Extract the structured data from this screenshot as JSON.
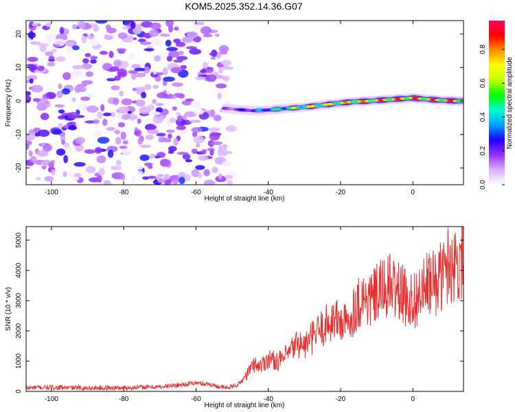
{
  "title": "KOM5.2025.352.14.36.G07",
  "chart_data": [
    {
      "type": "heatmap",
      "xlabel": "Height of straight line (km)",
      "ylabel": "Frequency (Hz)",
      "xlim": [
        -107,
        14
      ],
      "ylim": [
        -25,
        24
      ],
      "xticks": [
        "-100",
        "-80",
        "-60",
        "-40",
        "-20",
        "0"
      ],
      "xtick_values": [
        -100,
        -80,
        -60,
        -40,
        -20,
        0
      ],
      "yticks": [
        "-20",
        "-10",
        "0",
        "10",
        "20"
      ],
      "ytick_values": [
        -20,
        -10,
        0,
        10,
        20
      ],
      "colorbar": {
        "label": "Normalized spectral amplitude",
        "ticks": [
          "0.0",
          "0.2",
          "0.4",
          "0.6",
          "0.8"
        ],
        "tick_values": [
          0.0,
          0.2,
          0.4,
          0.6,
          0.8
        ],
        "range": [
          0,
          0.97
        ],
        "colormap": [
          "#ffffff",
          "#d8b0ff",
          "#9a30ff",
          "#2000ff",
          "#00a0ff",
          "#00ffd0",
          "#00ff00",
          "#c0ff00",
          "#ffff00",
          "#ff9000",
          "#ff0000",
          "#ff0060"
        ]
      },
      "noise_region": {
        "x": [
          -107,
          -50
        ],
        "y": [
          -25,
          24
        ],
        "amplitude_max": 0.25
      },
      "signal_track": {
        "x": [
          -52,
          -48,
          -44,
          -40,
          -36,
          -32,
          -28,
          -24,
          -20,
          -16,
          -12,
          -8,
          -4,
          0,
          4,
          8,
          12,
          14
        ],
        "frequency": [
          -2.2,
          -2.6,
          -2.9,
          -2.7,
          -2.3,
          -2.0,
          -1.6,
          -1.1,
          -0.6,
          -0.2,
          0.0,
          0.3,
          0.6,
          0.9,
          0.5,
          0.2,
          0.0,
          0.0
        ],
        "amplitude": [
          0.2,
          0.25,
          0.35,
          0.45,
          0.55,
          0.65,
          0.75,
          0.75,
          0.8,
          0.85,
          0.85,
          0.9,
          0.9,
          0.95,
          0.9,
          0.9,
          0.95,
          0.95
        ]
      }
    },
    {
      "type": "line",
      "xlabel": "Height of straight line (km)",
      "ylabel": "SNR (10 * v/v)",
      "xlim": [
        -107,
        14
      ],
      "ylim": [
        0,
        5450
      ],
      "xticks": [
        "-100",
        "-80",
        "-60",
        "-40",
        "-20",
        "0"
      ],
      "xtick_values": [
        -100,
        -80,
        -60,
        -40,
        -20,
        0
      ],
      "yticks": [
        "0",
        "1000",
        "2000",
        "3000",
        "4000",
        "5000"
      ],
      "ytick_values": [
        0,
        1000,
        2000,
        3000,
        4000,
        5000
      ],
      "series": [
        {
          "color": "#e83030",
          "x": [
            -107,
            -100,
            -90,
            -80,
            -70,
            -64,
            -60,
            -56,
            -54,
            -52,
            -50,
            -48,
            -46,
            -44,
            -42,
            -40,
            -38,
            -36,
            -34,
            -32,
            -30,
            -28,
            -26,
            -24,
            -22,
            -20,
            -18,
            -16,
            -14,
            -12,
            -10,
            -8,
            -6,
            -4,
            -2,
            0,
            2,
            4,
            6,
            8,
            10,
            12,
            14
          ],
          "y": [
            120,
            130,
            110,
            120,
            150,
            220,
            280,
            230,
            170,
            120,
            150,
            250,
            550,
            900,
            850,
            1100,
            1000,
            1050,
            1300,
            1600,
            1500,
            1750,
            2000,
            2200,
            2400,
            2300,
            2200,
            2800,
            3100,
            3000,
            3200,
            3400,
            3500,
            3300,
            3100,
            3000,
            3200,
            3500,
            3600,
            3800,
            4300,
            4200,
            4600
          ]
        }
      ]
    }
  ]
}
